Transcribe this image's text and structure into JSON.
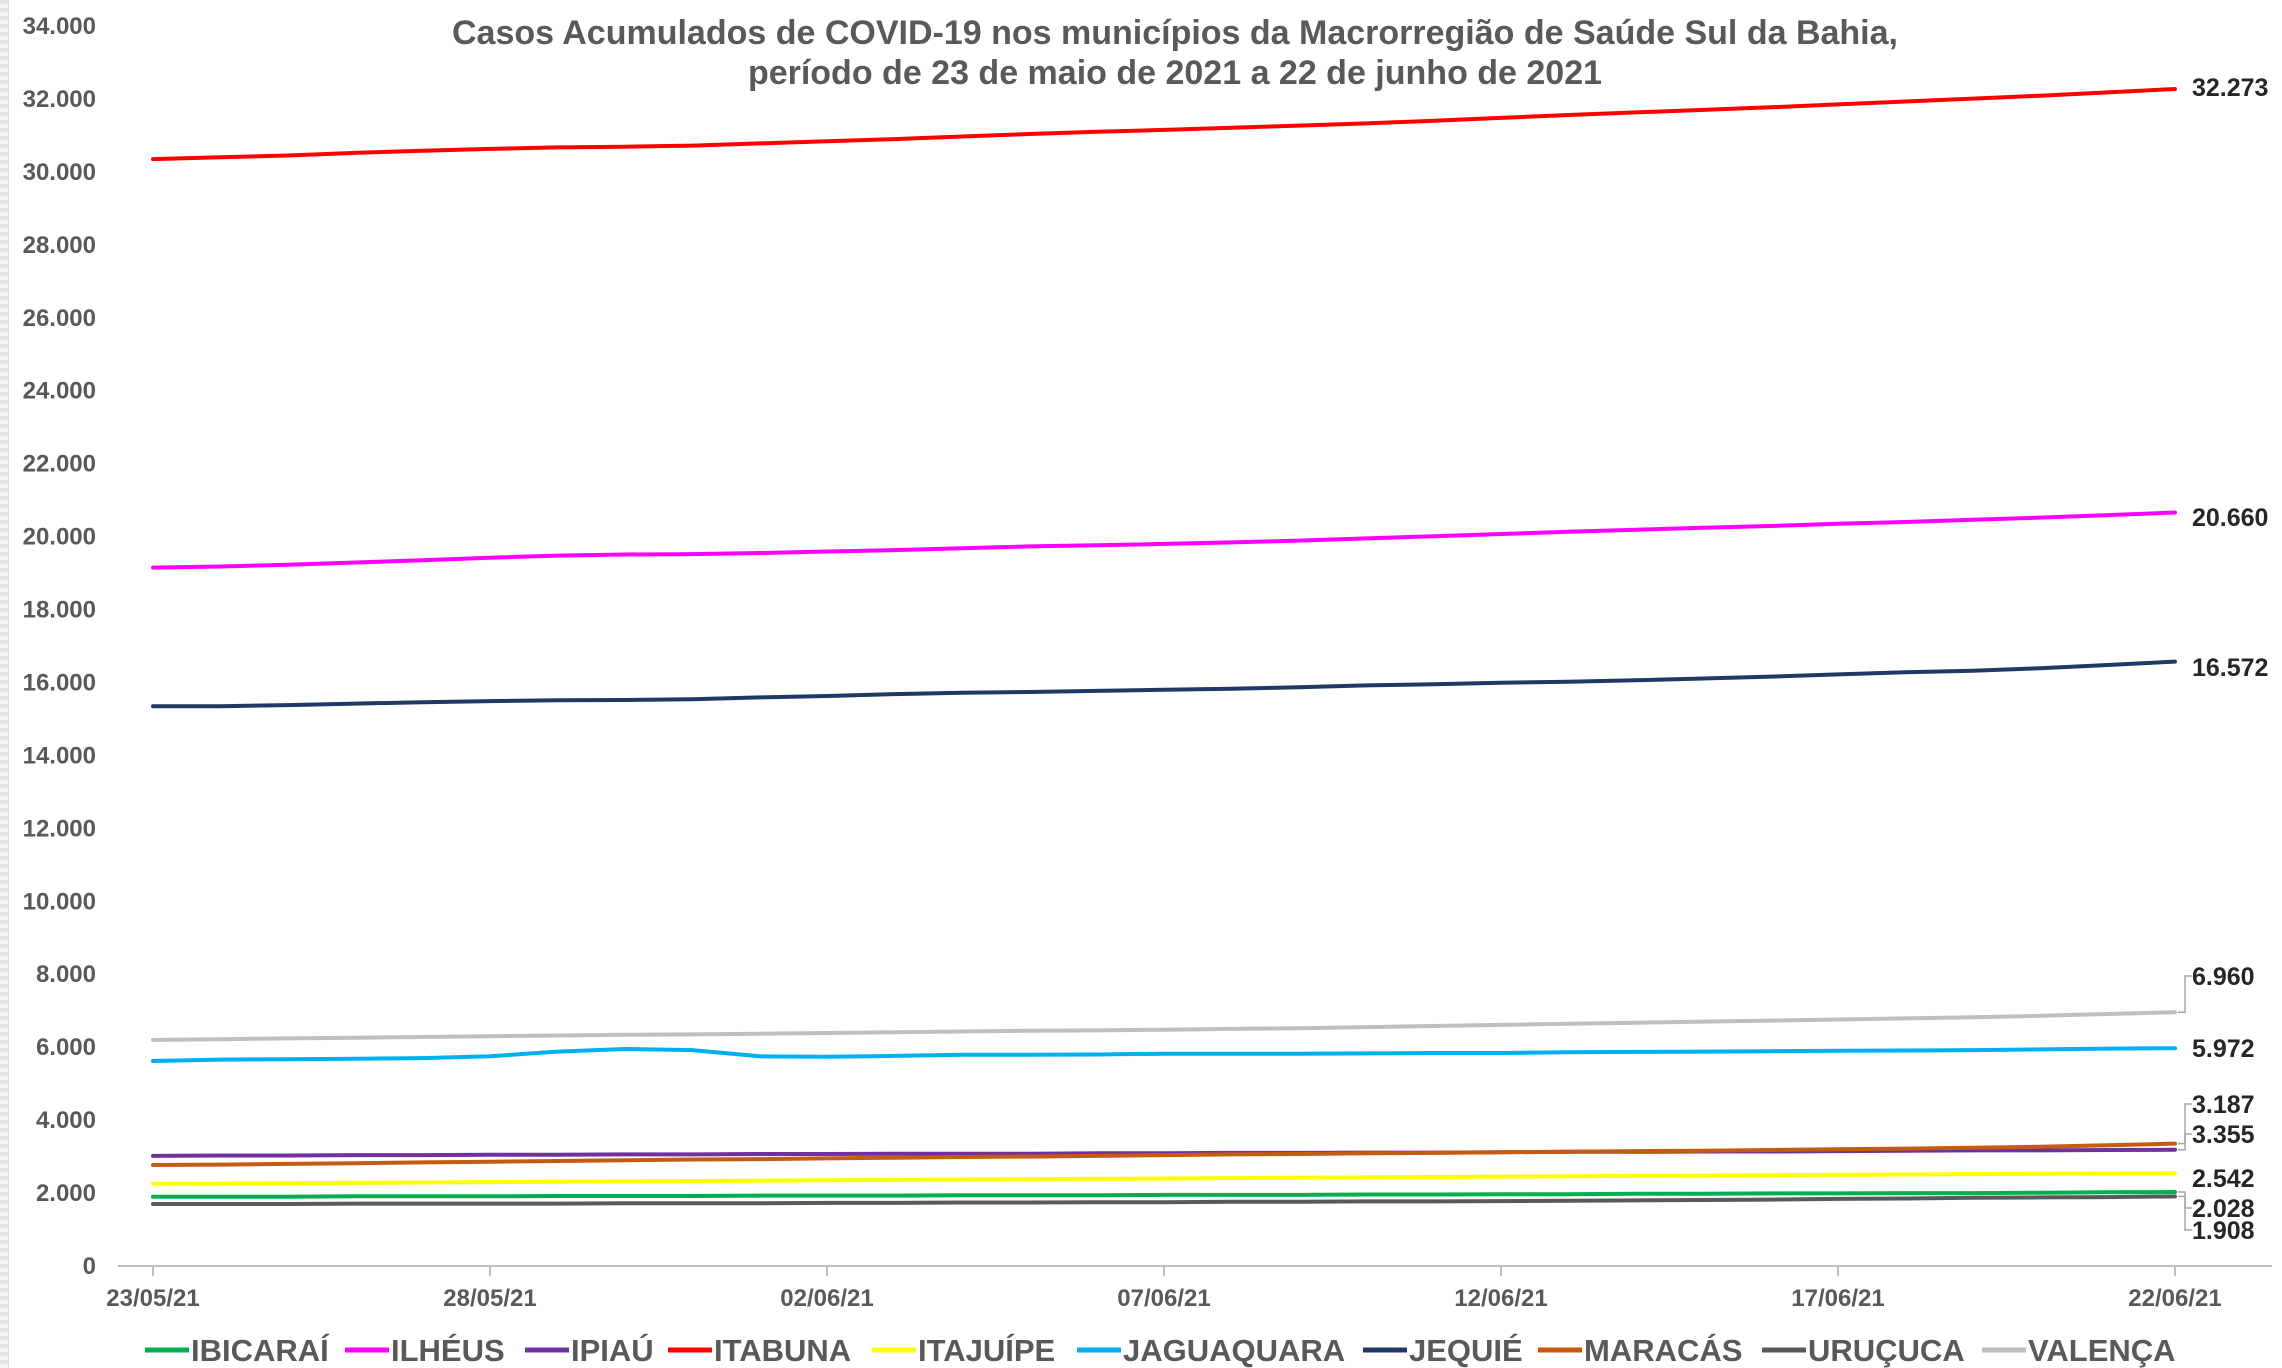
{
  "chart_data": {
    "type": "line",
    "title": "Casos Acumulados de COVID-19 nos municípios da Macrorregião de Saúde Sul da Bahia,",
    "subtitle": "período de 23 de maio de 2021 a 22 de junho de 2021",
    "xlabel": "",
    "ylabel": "",
    "ylim": [
      0,
      34000
    ],
    "yticks": [
      "0",
      "2.000",
      "4.000",
      "6.000",
      "8.000",
      "10.000",
      "12.000",
      "14.000",
      "16.000",
      "18.000",
      "20.000",
      "22.000",
      "24.000",
      "26.000",
      "28.000",
      "30.000",
      "32.000",
      "34.000"
    ],
    "x": [
      "23/05/21",
      "24/05/21",
      "25/05/21",
      "26/05/21",
      "27/05/21",
      "28/05/21",
      "29/05/21",
      "30/05/21",
      "31/05/21",
      "01/06/21",
      "02/06/21",
      "03/06/21",
      "04/06/21",
      "05/06/21",
      "06/06/21",
      "07/06/21",
      "08/06/21",
      "09/06/21",
      "10/06/21",
      "11/06/21",
      "12/06/21",
      "13/06/21",
      "14/06/21",
      "15/06/21",
      "16/06/21",
      "17/06/21",
      "18/06/21",
      "19/06/21",
      "20/06/21",
      "21/06/21",
      "22/06/21"
    ],
    "xticks": [
      "23/05/21",
      "28/05/21",
      "02/06/21",
      "07/06/21",
      "12/06/21",
      "17/06/21",
      "22/06/21"
    ],
    "grid": false,
    "legend": "bottom",
    "series": [
      {
        "name": "IBICARAÍ",
        "color": "#00b050",
        "values": [
          1900,
          1900,
          1900,
          1910,
          1910,
          1910,
          1920,
          1920,
          1920,
          1930,
          1930,
          1930,
          1940,
          1940,
          1940,
          1950,
          1950,
          1950,
          1960,
          1960,
          1970,
          1970,
          1980,
          1980,
          1990,
          1990,
          2000,
          2000,
          2010,
          2020,
          2028
        ]
      },
      {
        "name": "ILHÉUS",
        "color": "#ff00ff",
        "values": [
          19150,
          19180,
          19230,
          19290,
          19350,
          19420,
          19480,
          19510,
          19520,
          19550,
          19590,
          19630,
          19680,
          19730,
          19760,
          19800,
          19840,
          19890,
          19950,
          20010,
          20070,
          20130,
          20190,
          20240,
          20290,
          20350,
          20400,
          20460,
          20520,
          20590,
          20660
        ]
      },
      {
        "name": "IPIAÚ",
        "color": "#7030a0",
        "values": [
          3020,
          3030,
          3030,
          3040,
          3040,
          3050,
          3050,
          3060,
          3060,
          3070,
          3070,
          3080,
          3080,
          3080,
          3090,
          3090,
          3100,
          3100,
          3110,
          3110,
          3120,
          3130,
          3130,
          3140,
          3140,
          3150,
          3160,
          3170,
          3170,
          3180,
          3187
        ]
      },
      {
        "name": "ITABUNA",
        "color": "#ff0000",
        "values": [
          30350,
          30400,
          30450,
          30520,
          30580,
          30630,
          30670,
          30690,
          30720,
          30780,
          30840,
          30900,
          30970,
          31040,
          31100,
          31150,
          31210,
          31270,
          31330,
          31400,
          31480,
          31560,
          31630,
          31700,
          31770,
          31850,
          31930,
          32010,
          32090,
          32180,
          32273
        ]
      },
      {
        "name": "ITAJUÍPE",
        "color": "#ffff00",
        "values": [
          2250,
          2260,
          2270,
          2280,
          2290,
          2300,
          2310,
          2320,
          2330,
          2340,
          2350,
          2360,
          2370,
          2380,
          2390,
          2400,
          2410,
          2420,
          2430,
          2440,
          2450,
          2460,
          2470,
          2480,
          2490,
          2500,
          2510,
          2520,
          2530,
          2536,
          2542
        ]
      },
      {
        "name": "JAGUAQUARA",
        "color": "#00b0f0",
        "values": [
          5620,
          5660,
          5670,
          5680,
          5700,
          5750,
          5880,
          5950,
          5920,
          5750,
          5740,
          5760,
          5790,
          5790,
          5800,
          5820,
          5820,
          5820,
          5830,
          5840,
          5840,
          5860,
          5870,
          5880,
          5890,
          5900,
          5910,
          5920,
          5940,
          5960,
          5972
        ]
      },
      {
        "name": "JEQUIÉ",
        "color": "#1f3864",
        "values": [
          15350,
          15350,
          15380,
          15420,
          15460,
          15490,
          15510,
          15520,
          15540,
          15590,
          15630,
          15680,
          15720,
          15740,
          15770,
          15800,
          15830,
          15870,
          15920,
          15950,
          15990,
          16020,
          16060,
          16110,
          16160,
          16220,
          16280,
          16320,
          16390,
          16480,
          16572
        ]
      },
      {
        "name": "MARACÁS",
        "color": "#c55a11",
        "values": [
          2770,
          2780,
          2800,
          2820,
          2840,
          2860,
          2880,
          2900,
          2920,
          2930,
          2950,
          2970,
          2990,
          3000,
          3020,
          3040,
          3060,
          3070,
          3090,
          3100,
          3120,
          3130,
          3150,
          3160,
          3180,
          3200,
          3220,
          3240,
          3270,
          3310,
          3355
        ]
      },
      {
        "name": "URUÇUCA",
        "color": "#595959",
        "values": [
          1700,
          1700,
          1700,
          1710,
          1710,
          1710,
          1710,
          1720,
          1720,
          1720,
          1730,
          1730,
          1740,
          1740,
          1750,
          1750,
          1760,
          1760,
          1770,
          1770,
          1780,
          1790,
          1800,
          1810,
          1820,
          1840,
          1850,
          1870,
          1880,
          1890,
          1908
        ]
      },
      {
        "name": "VALENÇA",
        "color": "#bfbfbf",
        "values": [
          6200,
          6220,
          6240,
          6260,
          6280,
          6300,
          6320,
          6340,
          6350,
          6370,
          6390,
          6410,
          6430,
          6450,
          6460,
          6480,
          6500,
          6520,
          6550,
          6580,
          6610,
          6640,
          6670,
          6700,
          6730,
          6760,
          6790,
          6820,
          6860,
          6910,
          6960
        ]
      }
    ],
    "end_labels": [
      {
        "series": "ITABUNA",
        "text": "32.273"
      },
      {
        "series": "ILHÉUS",
        "text": "20.660"
      },
      {
        "series": "JEQUIÉ",
        "text": "16.572"
      },
      {
        "series": "VALENÇA",
        "text": "6.960"
      },
      {
        "series": "JAGUAQUARA",
        "text": "5.972"
      },
      {
        "series": "IPIAÚ",
        "text": "3.187"
      },
      {
        "series": "MARACÁS",
        "text": "3.355"
      },
      {
        "series": "ITAJUÍPE",
        "text": "2.542"
      },
      {
        "series": "IBICARAÍ",
        "text": "2.028"
      },
      {
        "series": "URUÇUCA",
        "text": "1.908"
      }
    ]
  }
}
